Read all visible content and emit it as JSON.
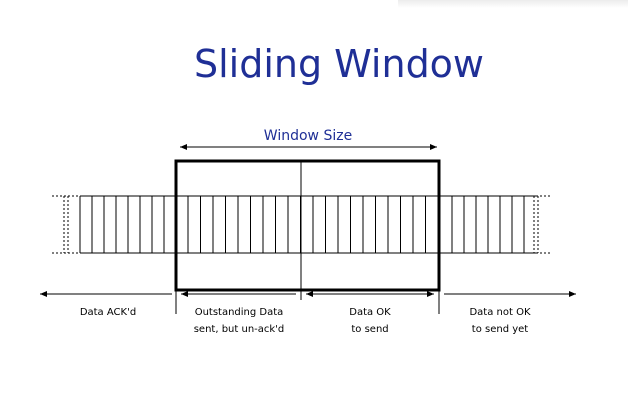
{
  "title": "Sliding Window",
  "window_label": "Window Size",
  "regions": [
    {
      "line1": "Data ACK'd",
      "line2": ""
    },
    {
      "line1": "Outstanding Data",
      "line2": "sent, but un-ack'd"
    },
    {
      "line1": "Data OK",
      "line2": "to send"
    },
    {
      "line1": "Data not OK",
      "line2": "to send yet"
    }
  ],
  "colors": {
    "title": "#1f2f96",
    "lines": "#000000"
  }
}
